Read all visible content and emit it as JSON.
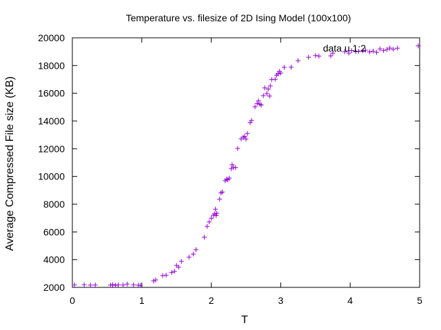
{
  "chart_data": {
    "type": "scatter",
    "title": "Temperature vs. filesize of 2D Ising Model (100x100)",
    "xlabel": "T",
    "ylabel": "Average Compressed File size (KB)",
    "xlim": [
      0,
      5
    ],
    "ylim": [
      2000,
      20000
    ],
    "xticks": [
      "0",
      "1",
      "2",
      "3",
      "4",
      "5"
    ],
    "yticks": [
      "2000",
      "4000",
      "6000",
      "8000",
      "10000",
      "12000",
      "14000",
      "16000",
      "18000",
      "20000"
    ],
    "grid": false,
    "legend_position": "top-right",
    "series": [
      {
        "name": "data u 1:2",
        "color": "#9400d3",
        "marker": "plus",
        "points": [
          [
            0.03,
            2180
          ],
          [
            0.17,
            2190
          ],
          [
            0.26,
            2160
          ],
          [
            0.33,
            2170
          ],
          [
            0.55,
            2160
          ],
          [
            0.58,
            2200
          ],
          [
            0.62,
            2150
          ],
          [
            0.66,
            2180
          ],
          [
            0.73,
            2170
          ],
          [
            0.79,
            2240
          ],
          [
            0.88,
            2180
          ],
          [
            0.95,
            2160
          ],
          [
            0.98,
            2140
          ],
          [
            1.17,
            2460
          ],
          [
            1.2,
            2540
          ],
          [
            1.3,
            2850
          ],
          [
            1.35,
            2880
          ],
          [
            1.43,
            3070
          ],
          [
            1.47,
            3160
          ],
          [
            1.5,
            3580
          ],
          [
            1.53,
            3460
          ],
          [
            1.57,
            3880
          ],
          [
            1.68,
            4180
          ],
          [
            1.74,
            4400
          ],
          [
            1.78,
            4720
          ],
          [
            1.9,
            5620
          ],
          [
            1.94,
            6400
          ],
          [
            1.97,
            6720
          ],
          [
            2.0,
            6990
          ],
          [
            2.03,
            7200
          ],
          [
            2.05,
            7300
          ],
          [
            2.06,
            7640
          ],
          [
            2.07,
            7180
          ],
          [
            2.08,
            7350
          ],
          [
            2.12,
            8360
          ],
          [
            2.14,
            8810
          ],
          [
            2.16,
            8880
          ],
          [
            2.2,
            9690
          ],
          [
            2.22,
            9800
          ],
          [
            2.24,
            9760
          ],
          [
            2.26,
            9880
          ],
          [
            2.29,
            10560
          ],
          [
            2.3,
            10840
          ],
          [
            2.32,
            10660
          ],
          [
            2.35,
            10640
          ],
          [
            2.38,
            12020
          ],
          [
            2.43,
            12710
          ],
          [
            2.46,
            12820
          ],
          [
            2.48,
            12890
          ],
          [
            2.5,
            12700
          ],
          [
            2.52,
            13100
          ],
          [
            2.56,
            13880
          ],
          [
            2.58,
            14040
          ],
          [
            2.63,
            15020
          ],
          [
            2.66,
            15260
          ],
          [
            2.68,
            15450
          ],
          [
            2.7,
            15210
          ],
          [
            2.72,
            15150
          ],
          [
            2.75,
            15830
          ],
          [
            2.77,
            16390
          ],
          [
            2.8,
            15980
          ],
          [
            2.82,
            16300
          ],
          [
            2.84,
            15800
          ],
          [
            2.85,
            16530
          ],
          [
            2.87,
            16990
          ],
          [
            2.92,
            17010
          ],
          [
            2.94,
            17300
          ],
          [
            2.96,
            17400
          ],
          [
            2.98,
            17580
          ],
          [
            3.0,
            17460
          ],
          [
            3.05,
            17870
          ],
          [
            3.15,
            17880
          ],
          [
            3.25,
            18350
          ],
          [
            3.4,
            18600
          ],
          [
            3.5,
            18720
          ],
          [
            3.55,
            18680
          ],
          [
            3.72,
            18700
          ],
          [
            3.75,
            18900
          ],
          [
            3.92,
            19000
          ],
          [
            3.98,
            18900
          ],
          [
            4.02,
            19080
          ],
          [
            4.08,
            19000
          ],
          [
            4.12,
            19020
          ],
          [
            4.18,
            19050
          ],
          [
            4.22,
            19100
          ],
          [
            4.28,
            18980
          ],
          [
            4.33,
            19040
          ],
          [
            4.38,
            18950
          ],
          [
            4.43,
            19200
          ],
          [
            4.48,
            19080
          ],
          [
            4.53,
            19160
          ],
          [
            4.57,
            19260
          ],
          [
            4.62,
            19180
          ],
          [
            4.68,
            19250
          ],
          [
            4.98,
            19420
          ]
        ]
      }
    ]
  }
}
